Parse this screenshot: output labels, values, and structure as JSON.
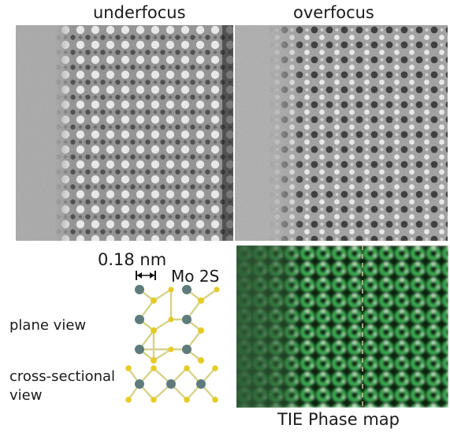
{
  "titles": {
    "left": "underfocus",
    "right": "overfocus"
  },
  "scale": {
    "length": "0.18 nm",
    "species": "Mo 2S"
  },
  "views": {
    "plane": "plane view",
    "cross": "cross-sectional\nview"
  },
  "caption": "TIE Phase map",
  "colors": {
    "mo_atom": "#5f7d7d",
    "s_atom": "#e3cf2a",
    "bond": "#cfcf7a",
    "phase_green": "#4fd06a"
  }
}
